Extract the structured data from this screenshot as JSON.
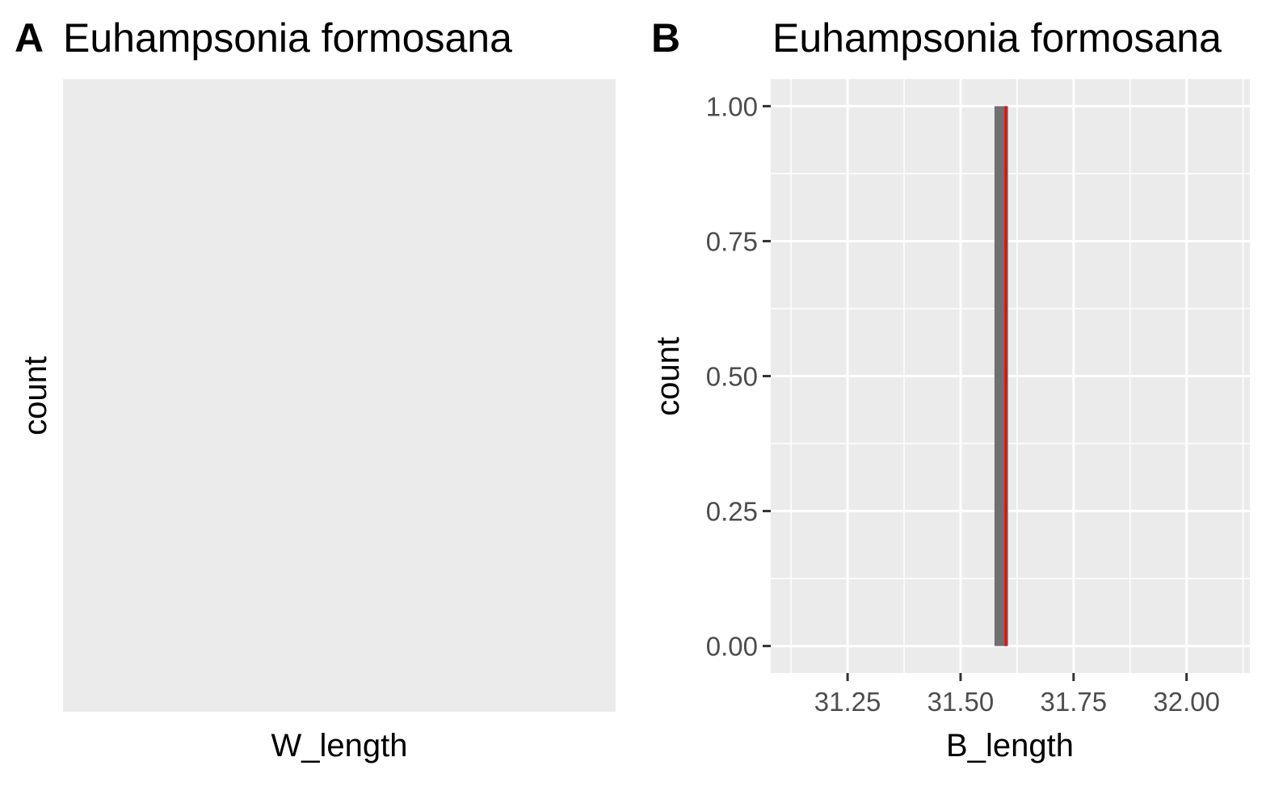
{
  "colors": {
    "panel_bg": "#ebebeb",
    "grid": "#ffffff",
    "bar": "#707070",
    "vline": "#ff0000",
    "tick_text": "#4d4d4d",
    "text": "#000000"
  },
  "chart_data": [
    {
      "tag": "A",
      "type": "bar",
      "title": "Euhampsonia formosana",
      "xlabel": "W_length",
      "ylabel": "count",
      "values": [],
      "grid": false
    },
    {
      "tag": "B",
      "type": "bar",
      "title": "Euhampsonia formosana",
      "xlabel": "B_length",
      "ylabel": "count",
      "xlim": [
        31.08,
        32.14
      ],
      "ylim": [
        -0.05,
        1.05
      ],
      "x_ticks": [
        31.25,
        31.5,
        31.75,
        32.0
      ],
      "x_tick_labels": [
        "31.25",
        "31.50",
        "31.75",
        "32.00"
      ],
      "y_ticks": [
        0,
        0.25,
        0.5,
        0.75,
        1.0
      ],
      "y_tick_labels": [
        "0.00",
        "0.25",
        "0.50",
        "0.75",
        "1.00"
      ],
      "bars": [
        {
          "x_start": 31.575,
          "x_end": 31.605,
          "count": 1
        }
      ],
      "vline_x": 31.6,
      "grid": true
    }
  ]
}
